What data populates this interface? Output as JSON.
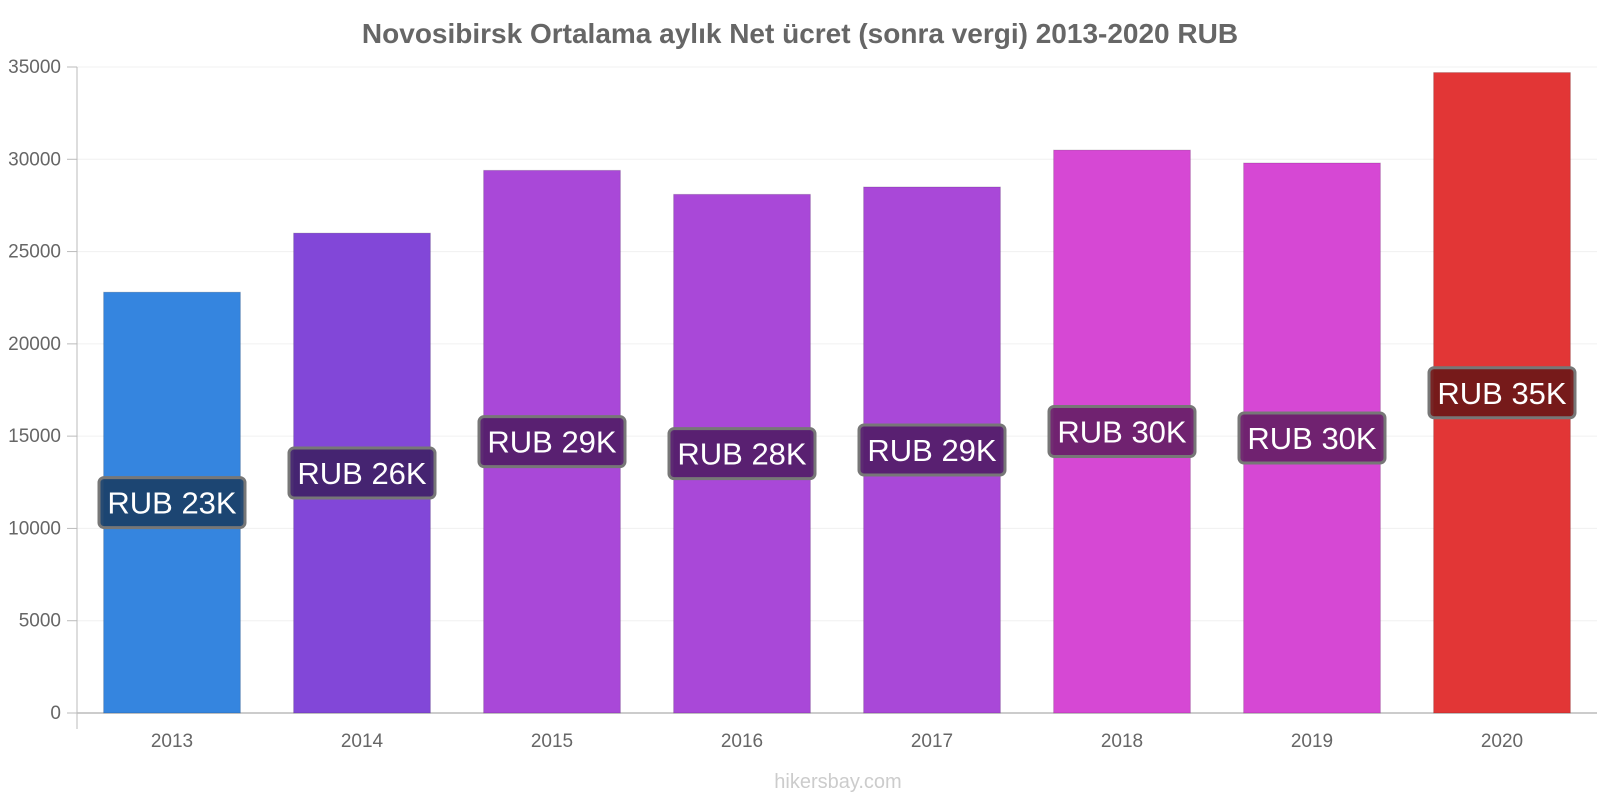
{
  "chart_data": {
    "type": "bar",
    "title": "Novosibirsk Ortalama aylık Net ücret (sonra vergi) 2013-2020 RUB",
    "xlabel": "",
    "ylabel": "",
    "categories": [
      "2013",
      "2014",
      "2015",
      "2016",
      "2017",
      "2018",
      "2019",
      "2020"
    ],
    "values": [
      22800,
      26000,
      29400,
      28100,
      28500,
      30500,
      29800,
      34700
    ],
    "data_labels": [
      "RUB 23K",
      "RUB 26K",
      "RUB 29K",
      "RUB 28K",
      "RUB 29K",
      "RUB 30K",
      "RUB 30K",
      "RUB 35K"
    ],
    "bar_colors": [
      "#3585df",
      "#8247d8",
      "#a948d8",
      "#a948d8",
      "#a948d8",
      "#d648d4",
      "#d648d4",
      "#e23636"
    ],
    "label_bg_colors": [
      "#1b416c",
      "#41236b",
      "#541f6b",
      "#541f6b",
      "#541f6b",
      "#6a216a",
      "#6a216a",
      "#701919"
    ],
    "ylim": [
      0,
      35000
    ],
    "yticks": [
      0,
      5000,
      10000,
      15000,
      20000,
      25000,
      30000,
      35000
    ],
    "grid": true,
    "legend": "none"
  },
  "footer": {
    "source": "hikersbay.com"
  }
}
